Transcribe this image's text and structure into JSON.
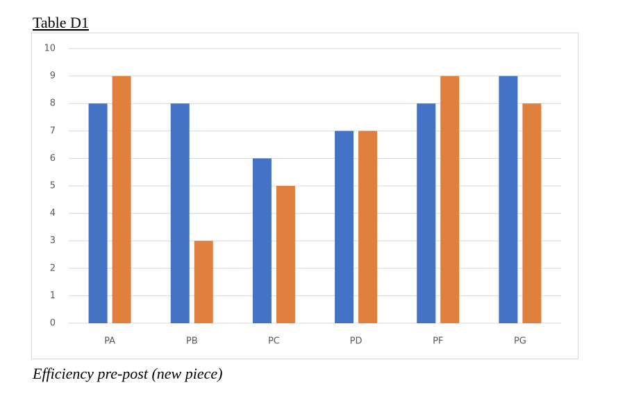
{
  "chart_data": {
    "type": "bar",
    "title": "Table D1",
    "caption": "Efficiency pre-post (new piece)",
    "categories": [
      "PA",
      "PB",
      "PC",
      "PD",
      "PF",
      "PG"
    ],
    "series": [
      {
        "color": "#4472c4",
        "values": [
          8,
          8,
          6,
          7,
          8,
          9
        ]
      },
      {
        "color": "#e07f3e",
        "values": [
          9,
          3,
          5,
          7,
          9,
          8
        ]
      }
    ],
    "ylim": [
      0,
      10
    ],
    "yticks": [
      0,
      1,
      2,
      3,
      4,
      5,
      6,
      7,
      8,
      9,
      10
    ],
    "grid": true
  }
}
